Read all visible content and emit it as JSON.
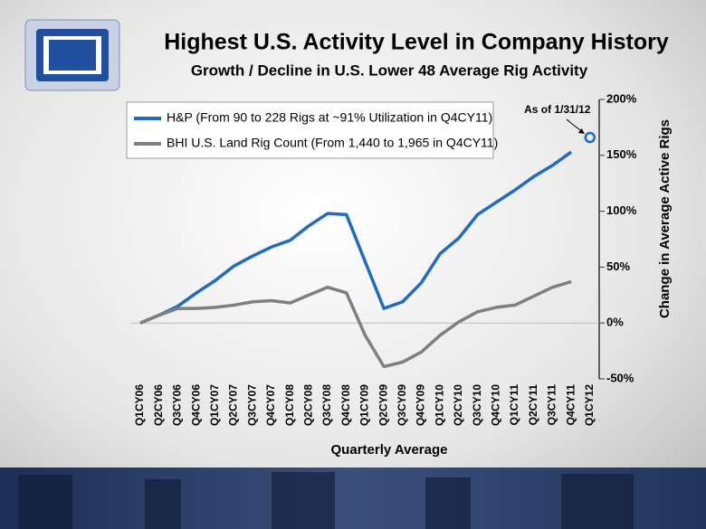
{
  "chart_data": {
    "type": "line",
    "title": "Highest U.S. Activity Level in Company History",
    "subtitle": "Growth / Decline in U.S. Lower 48 Average Rig Activity",
    "x_label": "Quarterly Average",
    "y_label": "Change in Average Active Rigs",
    "categories": [
      "Q1CY06",
      "Q2CY06",
      "Q3CY06",
      "Q4CY06",
      "Q1CY07",
      "Q2CY07",
      "Q3CY07",
      "Q4CY07",
      "Q1CY08",
      "Q2CY08",
      "Q3CY08",
      "Q4CY08",
      "Q1CY09",
      "Q2CY09",
      "Q3CY09",
      "Q4CY09",
      "Q1CY10",
      "Q2CY10",
      "Q3CY10",
      "Q4CY10",
      "Q1CY11",
      "Q2CY11",
      "Q3CY11",
      "Q4CY11",
      "Q1CY12"
    ],
    "series": [
      {
        "name": "H&P (From 90 to 228 Rigs at ~91% Utilization in Q4CY11)",
        "color": "#1f6bc2",
        "values": [
          0,
          7,
          15,
          27,
          38,
          51,
          60,
          68,
          74,
          87,
          98,
          97,
          55,
          13,
          19,
          36,
          62,
          76,
          97,
          108,
          119,
          131,
          141,
          153,
          null
        ]
      },
      {
        "name": "BHI U.S. Land Rig Count (From 1,440 to 1,965 in Q4CY11)",
        "color": "#7f7f7f",
        "values": [
          0,
          7,
          13,
          13,
          14,
          16,
          19,
          20,
          18,
          25,
          32,
          27,
          -11,
          -39,
          -35,
          -26,
          -11,
          1,
          10,
          14,
          16,
          24,
          32,
          37,
          null
        ]
      }
    ],
    "annotation": {
      "text": "As of 1/31/12",
      "x": "Q1CY12",
      "y": 166,
      "color": "#1f6bc2"
    },
    "ylim": [
      -50,
      200
    ],
    "yticks": [
      {
        "value": -50,
        "label": "-50%"
      },
      {
        "value": 0,
        "label": "0%"
      },
      {
        "value": 50,
        "label": "50%"
      },
      {
        "value": 100,
        "label": "100%"
      },
      {
        "value": 150,
        "label": "150%"
      },
      {
        "value": 200,
        "label": "200%"
      }
    ],
    "legend": "upper left"
  }
}
